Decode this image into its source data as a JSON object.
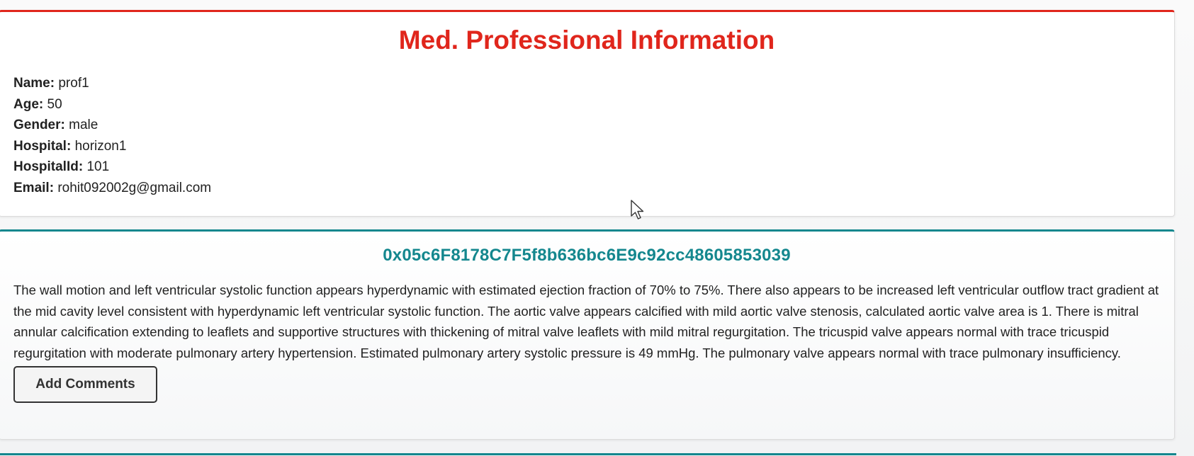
{
  "professional": {
    "title": "Med. Professional Information",
    "fields": [
      {
        "label": "Name:",
        "value": "prof1"
      },
      {
        "label": "Age:",
        "value": "50"
      },
      {
        "label": "Gender:",
        "value": "male"
      },
      {
        "label": "Hospital:",
        "value": "horizon1"
      },
      {
        "label": "HospitalId:",
        "value": "101"
      },
      {
        "label": "Email:",
        "value": "rohit092002g@gmail.com"
      }
    ]
  },
  "report": {
    "address": "0x05c6F8178C7F5f8b636bc6E9c92cc48605853039",
    "text": "The wall motion and left ventricular systolic function appears hyperdynamic with estimated ejection fraction of 70% to 75%. There also appears to be increased left ventricular outflow tract gradient at the mid cavity level consistent with hyperdynamic left ventricular systolic function. The aortic valve appears calcified with mild aortic valve stenosis, calculated aortic valve area is 1. There is mitral annular calcification extending to leaflets and supportive structures with thickening of mitral valve leaflets with mild mitral regurgitation. The tricuspid valve appears normal with trace tricuspid regurgitation with moderate pulmonary artery hypertension. Estimated pulmonary artery systolic pressure is 49 mmHg. The pulmonary valve appears normal with trace pulmonary insufficiency.",
    "button_label": "Add Comments"
  },
  "colors": {
    "prof_accent": "#e0261c",
    "report_accent": "#14878e"
  },
  "icons": {
    "cursor": "mouse-pointer-icon"
  }
}
